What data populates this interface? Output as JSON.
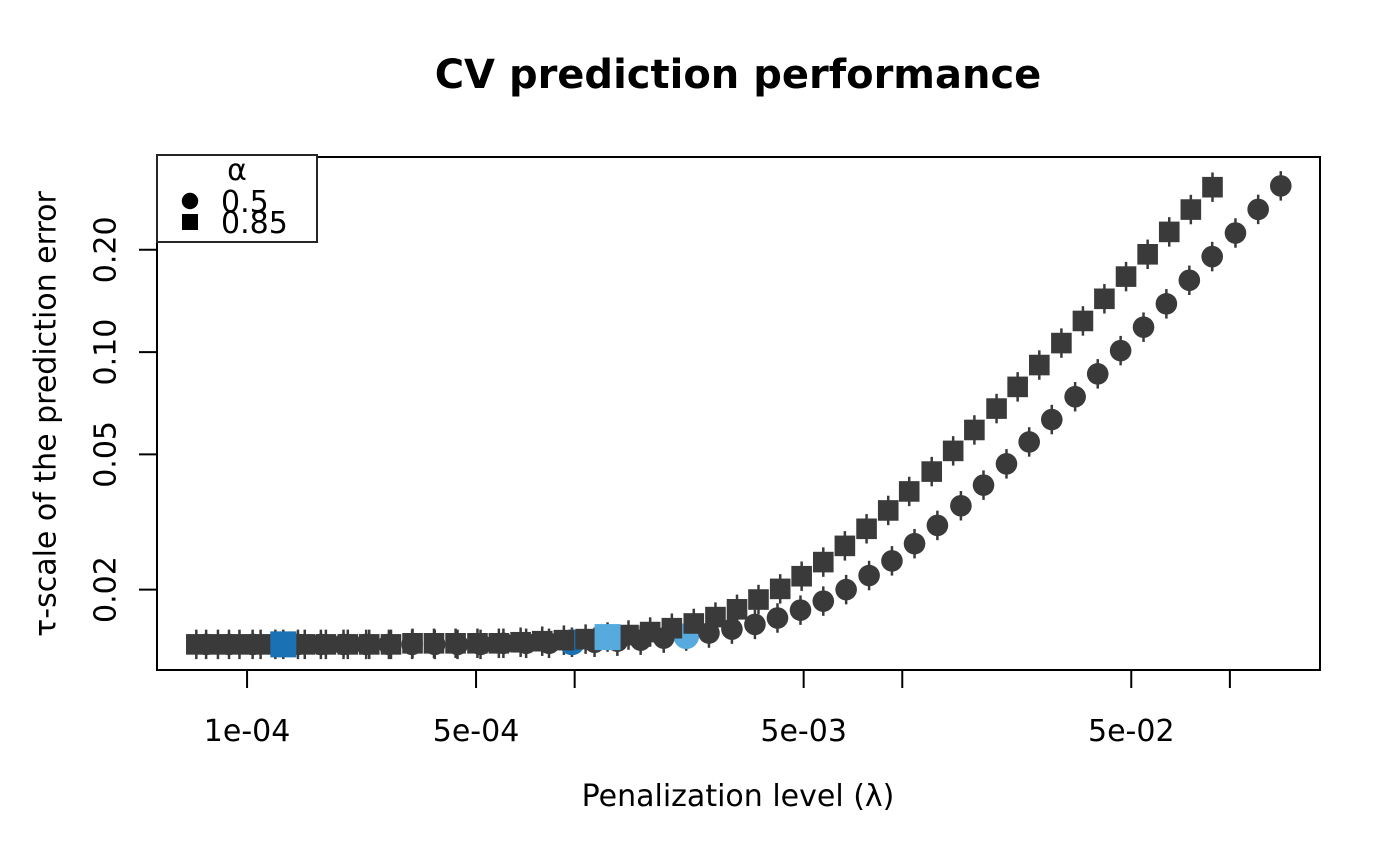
{
  "chart_data": {
    "type": "scatter",
    "title": "CV prediction performance",
    "xlabel": "Penalization level (λ)",
    "ylabel": "τ-scale of the prediction error",
    "x_scale": "log",
    "y_scale": "log",
    "x_range": [
      5.31e-05,
      0.1884
    ],
    "y_range": [
      0.0116,
      0.3751
    ],
    "x_ticks": [
      {
        "value": 0.0001,
        "label": "1e-04"
      },
      {
        "value": 0.0005,
        "label": "5e-04"
      },
      {
        "value": 0.001,
        "label": ""
      },
      {
        "value": 0.005,
        "label": "5e-03"
      },
      {
        "value": 0.01,
        "label": ""
      },
      {
        "value": 0.05,
        "label": "5e-02"
      },
      {
        "value": 0.1,
        "label": ""
      }
    ],
    "y_ticks": [
      {
        "value": 0.02,
        "label": "0.02"
      },
      {
        "value": 0.05,
        "label": "0.05"
      },
      {
        "value": 0.1,
        "label": "0.10"
      },
      {
        "value": 0.2,
        "label": "0.20"
      }
    ],
    "legend": {
      "position": "topleft",
      "title": "α",
      "entries": [
        {
          "marker": "circle",
          "label": "0.5"
        },
        {
          "marker": "square",
          "label": "0.85"
        }
      ]
    },
    "colors": {
      "point": "#3a3a3a",
      "highlight_dark": "#1a72b4",
      "highlight_light": "#56aadd",
      "axis": "#000000"
    },
    "se_rel": 0.105,
    "series": [
      {
        "name": "0.5",
        "alpha": 0.5,
        "marker": "circle",
        "points": [
          [
            7.5e-05,
            0.0138
          ],
          [
            8.81e-05,
            0.0138
          ],
          [
            0.000104,
            0.0138
          ],
          [
            0.000122,
            0.0138
          ],
          [
            0.000143,
            0.0138
          ],
          [
            0.000168,
            0.0138
          ],
          [
            0.000197,
            0.0138
          ],
          [
            0.000231,
            0.0138
          ],
          [
            0.000271,
            0.0138
          ],
          [
            0.000319,
            0.0138
          ],
          [
            0.000374,
            0.0138
          ],
          [
            0.000439,
            0.0138
          ],
          [
            0.000516,
            0.0138
          ],
          [
            0.000606,
            0.0139
          ],
          [
            0.000711,
            0.0139
          ],
          [
            0.000835,
            0.0139
          ],
          [
            0.000981,
            0.014
          ],
          [
            0.00115,
            0.014
          ],
          [
            0.00135,
            0.0141
          ],
          [
            0.00159,
            0.0142
          ],
          [
            0.00187,
            0.0144
          ],
          [
            0.00219,
            0.0146
          ],
          [
            0.00257,
            0.0149
          ],
          [
            0.00302,
            0.0153
          ],
          [
            0.00355,
            0.0158
          ],
          [
            0.00416,
            0.0165
          ],
          [
            0.00489,
            0.0174
          ],
          [
            0.00574,
            0.0185
          ],
          [
            0.00674,
            0.02
          ],
          [
            0.00792,
            0.022
          ],
          [
            0.0093,
            0.0243
          ],
          [
            0.0109,
            0.0273
          ],
          [
            0.0128,
            0.0309
          ],
          [
            0.0151,
            0.0353
          ],
          [
            0.0177,
            0.0406
          ],
          [
            0.0208,
            0.0469
          ],
          [
            0.0244,
            0.0544
          ],
          [
            0.0286,
            0.0633
          ],
          [
            0.0337,
            0.0739
          ],
          [
            0.0395,
            0.0863
          ],
          [
            0.0464,
            0.101
          ],
          [
            0.0545,
            0.1184
          ],
          [
            0.064,
            0.1387
          ],
          [
            0.0752,
            0.1627
          ],
          [
            0.0883,
            0.191
          ],
          [
            0.104,
            0.2241
          ],
          [
            0.122,
            0.263
          ],
          [
            0.143,
            0.3084
          ]
        ]
      },
      {
        "name": "0.85",
        "alpha": 0.85,
        "marker": "square",
        "points": [
          [
            7e-05,
            0.0138
          ],
          [
            8.15e-05,
            0.0138
          ],
          [
            9.48e-05,
            0.0138
          ],
          [
            0.00011,
            0.0138
          ],
          [
            0.000129,
            0.0138
          ],
          [
            0.00015,
            0.0138
          ],
          [
            0.000174,
            0.0138
          ],
          [
            0.000203,
            0.0138
          ],
          [
            0.000236,
            0.0138
          ],
          [
            0.000275,
            0.0138
          ],
          [
            0.00032,
            0.0139
          ],
          [
            0.000372,
            0.0139
          ],
          [
            0.000433,
            0.0139
          ],
          [
            0.000505,
            0.0139
          ],
          [
            0.000587,
            0.0139
          ],
          [
            0.000684,
            0.014
          ],
          [
            0.000796,
            0.0141
          ],
          [
            0.000927,
            0.0142
          ],
          [
            0.00108,
            0.0143
          ],
          [
            0.00126,
            0.0145
          ],
          [
            0.00146,
            0.0147
          ],
          [
            0.0017,
            0.015
          ],
          [
            0.00198,
            0.0154
          ],
          [
            0.00231,
            0.0159
          ],
          [
            0.00269,
            0.0166
          ],
          [
            0.00313,
            0.0175
          ],
          [
            0.00364,
            0.0187
          ],
          [
            0.00424,
            0.0201
          ],
          [
            0.00493,
            0.0219
          ],
          [
            0.00574,
            0.0241
          ],
          [
            0.00668,
            0.0269
          ],
          [
            0.00778,
            0.0302
          ],
          [
            0.00906,
            0.0342
          ],
          [
            0.0105,
            0.0389
          ],
          [
            0.0123,
            0.0445
          ],
          [
            0.0143,
            0.0512
          ],
          [
            0.0166,
            0.059
          ],
          [
            0.0194,
            0.0682
          ],
          [
            0.0225,
            0.079
          ],
          [
            0.0262,
            0.0916
          ],
          [
            0.0306,
            0.1063
          ],
          [
            0.0356,
            0.1235
          ],
          [
            0.0414,
            0.1435
          ],
          [
            0.0482,
            0.1668
          ],
          [
            0.0561,
            0.194
          ],
          [
            0.0653,
            0.2258
          ],
          [
            0.076,
            0.2627
          ],
          [
            0.0885,
            0.3057
          ]
        ]
      }
    ],
    "highlights": [
      {
        "series": "0.85",
        "lambda": 0.000129,
        "tau": 0.0138,
        "shade": "dark",
        "layer": "over"
      },
      {
        "series": "0.5",
        "lambda": 0.000981,
        "tau": 0.014,
        "shade": "dark",
        "layer": "under"
      },
      {
        "series": "0.85",
        "lambda": 0.00126,
        "tau": 0.0145,
        "shade": "light",
        "layer": "over"
      },
      {
        "series": "0.5",
        "lambda": 0.00219,
        "tau": 0.0146,
        "shade": "light",
        "layer": "under"
      }
    ]
  }
}
